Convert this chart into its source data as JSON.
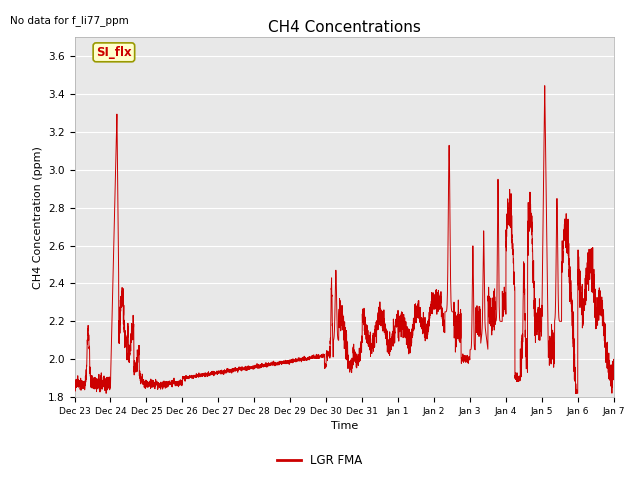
{
  "title": "CH4 Concentrations",
  "xlabel": "Time",
  "ylabel": "CH4 Concentration (ppm)",
  "top_left_note": "No data for f_li77_ppm",
  "legend_label": "LGR FMA",
  "legend_color": "#cc0000",
  "line_color": "#cc0000",
  "background_color": "#e8e8e8",
  "ylim": [
    1.8,
    3.7
  ],
  "yticks": [
    1.8,
    2.0,
    2.2,
    2.4,
    2.6,
    2.8,
    3.0,
    3.2,
    3.4,
    3.6
  ],
  "xtick_labels": [
    "Dec 23",
    "Dec 24",
    "Dec 25",
    "Dec 26",
    "Dec 27",
    "Dec 28",
    "Dec 29",
    "Dec 30",
    "Dec 31",
    "Jan 1",
    "Jan 2",
    "Jan 3",
    "Jan 4",
    "Jan 5",
    "Jan 6",
    "Jan 7"
  ],
  "si_flx_label": "SI_flx",
  "si_flx_box_color": "#ffffcc",
  "si_flx_text_color": "#cc0000",
  "si_flx_border_color": "#999900",
  "figsize": [
    6.4,
    4.8
  ],
  "dpi": 100
}
